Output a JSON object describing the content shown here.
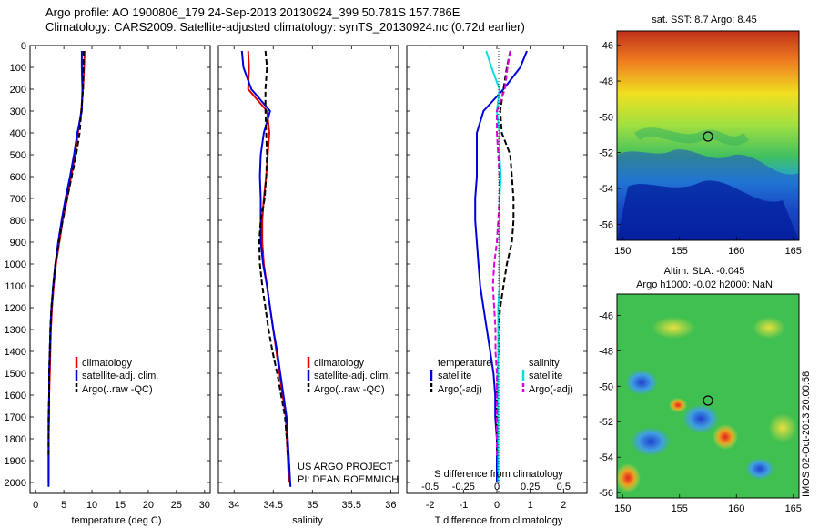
{
  "header": {
    "line1": "Argo profile: AO 1900806_179 24-Sep-2013 20130924_399 50.781S 157.786E",
    "line2": "Climatology: CARS2009. Satellite-adjusted climatology: synTS_20130924.nc (0.72d earlier)"
  },
  "colors": {
    "climatology": "#e00000",
    "satellite": "#0000dd",
    "argo": "#000000",
    "sat_salinity": "#00e0e0",
    "argo_salinity_adj": "#dd00dd"
  },
  "panels": {
    "temperature": {
      "xlabel": "temperature (deg C)",
      "xticks": [
        "0",
        "5",
        "10",
        "15",
        "20",
        "25",
        "30"
      ],
      "legend": [
        "climatology",
        "satellite-adj. clim.",
        "Argo(..raw -QC)"
      ]
    },
    "salinity": {
      "xlabel": "salinity",
      "xticks": [
        "34",
        "34.5",
        "35",
        "35.5",
        "36"
      ],
      "legend": [
        "climatology",
        "satellite-adj. clim.",
        "Argo(..raw -QC)"
      ],
      "credit1": "US ARGO PROJECT",
      "credit2": "PI: DEAN ROEMMICH"
    },
    "difference": {
      "xlabel": "T difference from climatology",
      "toplabel": "S difference from climatology",
      "xticks_t": [
        "-2",
        "-1",
        "0",
        "1",
        "2"
      ],
      "xticks_s": [
        "-0.5",
        "-0.25",
        "0",
        "0.25",
        "0.5"
      ],
      "legend_t_title": "temperature",
      "legend_t": [
        "satellite",
        "Argo(-adj)"
      ],
      "legend_s_title": "salinity",
      "legend_s": [
        "satellite",
        "Argo(-adj)"
      ]
    }
  },
  "yticks": [
    "0",
    "100",
    "200",
    "300",
    "400",
    "500",
    "600",
    "700",
    "800",
    "900",
    "1000",
    "1100",
    "1200",
    "1300",
    "1400",
    "1500",
    "1600",
    "1700",
    "1800",
    "1900",
    "2000"
  ],
  "maps": {
    "sst_title": "sat. SST: 8.7 Argo: 8.45",
    "sla_title1": "Altim. SLA: -0.045",
    "sla_title2": "Argo h1000: -0.02 h2000: NaN",
    "lat_ticks": [
      "-46",
      "-48",
      "-50",
      "-52",
      "-54",
      "-56"
    ],
    "lon_ticks": [
      "150",
      "155",
      "160",
      "165"
    ],
    "stamp": "IMOS 02-Oct-2013 20:00:58"
  },
  "chart_data": [
    {
      "type": "line",
      "title": "",
      "xlabel": "temperature (deg C)",
      "ylabel": "",
      "xlim": [
        -1,
        31
      ],
      "ylim": [
        2050,
        0
      ],
      "series": [
        {
          "name": "climatology",
          "x": [
            8.7,
            8.6,
            8.4,
            8.1,
            7.5,
            7.0,
            6.3,
            5.6,
            4.8,
            4.2,
            3.6,
            3.2,
            2.9,
            2.7,
            2.6,
            2.5,
            2.4,
            2.4,
            2.3,
            2.3
          ],
          "y": [
            25,
            100,
            200,
            300,
            400,
            500,
            600,
            700,
            800,
            900,
            1000,
            1100,
            1200,
            1300,
            1400,
            1500,
            1600,
            1700,
            1800,
            2000
          ]
        },
        {
          "name": "satellite-adj. clim.",
          "x": [
            8.2,
            8.2,
            8.3,
            8.2,
            7.4,
            6.8,
            6.1,
            5.3,
            4.6,
            4.0,
            3.5,
            3.1,
            2.8,
            2.6,
            2.5,
            2.4,
            2.4,
            2.3,
            2.3,
            2.3
          ],
          "y": [
            25,
            100,
            200,
            300,
            400,
            500,
            600,
            700,
            800,
            900,
            1000,
            1100,
            1200,
            1300,
            1400,
            1500,
            1600,
            1700,
            1800,
            2020
          ]
        },
        {
          "name": "Argo(..raw -QC)",
          "x": [
            8.5,
            8.5,
            8.4,
            8.1,
            7.8,
            7.2,
            6.4,
            5.6,
            4.8,
            4.1,
            3.5,
            3.1,
            2.8,
            2.6,
            2.5,
            2.4,
            2.4,
            2.3,
            2.3
          ],
          "y": [
            25,
            100,
            200,
            300,
            400,
            500,
            600,
            700,
            800,
            900,
            1000,
            1100,
            1200,
            1300,
            1400,
            1500,
            1600,
            1700,
            1880
          ]
        }
      ]
    },
    {
      "type": "line",
      "title": "",
      "xlabel": "salinity",
      "ylabel": "",
      "xlim": [
        33.8,
        36.1
      ],
      "ylim": [
        2050,
        0
      ],
      "series": [
        {
          "name": "climatology",
          "x": [
            34.18,
            34.19,
            34.18,
            34.42,
            34.45,
            34.43,
            34.41,
            34.38,
            34.36,
            34.36,
            34.38,
            34.42,
            34.46,
            34.5,
            34.54,
            34.58,
            34.62,
            34.66,
            34.7
          ],
          "y": [
            25,
            100,
            200,
            300,
            400,
            500,
            600,
            700,
            800,
            900,
            1000,
            1100,
            1200,
            1300,
            1400,
            1500,
            1600,
            1700,
            2000
          ]
        },
        {
          "name": "satellite-adj. clim.",
          "x": [
            34.1,
            34.12,
            34.22,
            34.46,
            34.38,
            34.34,
            34.33,
            34.34,
            34.34,
            34.34,
            34.37,
            34.42,
            34.46,
            34.5,
            34.55,
            34.59,
            34.63,
            34.67,
            34.72
          ],
          "y": [
            25,
            100,
            200,
            300,
            400,
            500,
            600,
            700,
            800,
            900,
            1000,
            1100,
            1200,
            1300,
            1400,
            1500,
            1600,
            1700,
            2020
          ]
        },
        {
          "name": "Argo(..raw -QC)",
          "x": [
            34.4,
            34.42,
            34.4,
            34.4,
            34.41,
            34.42,
            34.41,
            34.39,
            34.34,
            34.32,
            34.33,
            34.36,
            34.4,
            34.44,
            34.49,
            34.55,
            34.6,
            34.65,
            34.69
          ],
          "y": [
            25,
            100,
            200,
            300,
            400,
            500,
            600,
            700,
            800,
            900,
            1000,
            1100,
            1200,
            1300,
            1400,
            1500,
            1600,
            1700,
            1880
          ]
        }
      ]
    },
    {
      "type": "line",
      "title": "",
      "xlabel": "T difference from climatology",
      "ylabel": "",
      "xlim": [
        -2.7,
        2.7
      ],
      "ylim": [
        2050,
        0
      ],
      "series": [
        {
          "name": "temperature satellite",
          "x": [
            0.9,
            0.7,
            0.2,
            -0.4,
            -0.6,
            -0.6,
            -0.6,
            -0.65,
            -0.65,
            -0.6,
            -0.55,
            -0.5,
            -0.4,
            -0.3,
            -0.2,
            -0.1,
            -0.05,
            -0.05,
            0,
            0
          ],
          "y": [
            25,
            100,
            200,
            300,
            400,
            500,
            600,
            700,
            800,
            900,
            1000,
            1100,
            1200,
            1300,
            1400,
            1500,
            1600,
            1700,
            1800,
            2000
          ]
        },
        {
          "name": "temperature Argo(-adj)",
          "x": [
            0.4,
            0.3,
            0.2,
            0.1,
            0.15,
            0.4,
            0.45,
            0.5,
            0.5,
            0.45,
            0.3,
            0.2,
            0.1,
            0.05,
            0.05,
            0.02,
            0,
            0,
            0
          ],
          "y": [
            25,
            100,
            200,
            300,
            400,
            500,
            600,
            700,
            800,
            900,
            1000,
            1100,
            1200,
            1300,
            1400,
            1500,
            1600,
            1700,
            1880
          ]
        },
        {
          "name": "salinity satellite",
          "x": [
            -0.08,
            -0.04,
            0.02,
            0,
            0.02,
            0.02,
            0.03,
            0.02,
            0.02,
            0.02,
            0.02,
            0.02,
            0.01,
            0.01,
            0.01,
            0.01,
            0.01,
            0.01,
            0.01,
            0.01
          ],
          "y": [
            25,
            100,
            200,
            300,
            400,
            500,
            600,
            700,
            800,
            900,
            1000,
            1100,
            1200,
            1300,
            1400,
            1500,
            1600,
            1700,
            1800,
            2000
          ]
        },
        {
          "name": "salinity Argo(-adj)",
          "x": [
            0.1,
            0.08,
            0.06,
            0.0,
            0.0,
            0.01,
            0.02,
            0.02,
            0.01,
            0.0,
            -0.02,
            -0.03,
            -0.02,
            -0.01,
            -0.01,
            0,
            0,
            0,
            0
          ],
          "y": [
            25,
            100,
            200,
            300,
            400,
            500,
            600,
            700,
            800,
            900,
            1000,
            1100,
            1200,
            1300,
            1400,
            1500,
            1600,
            1700,
            1880
          ]
        }
      ]
    }
  ]
}
